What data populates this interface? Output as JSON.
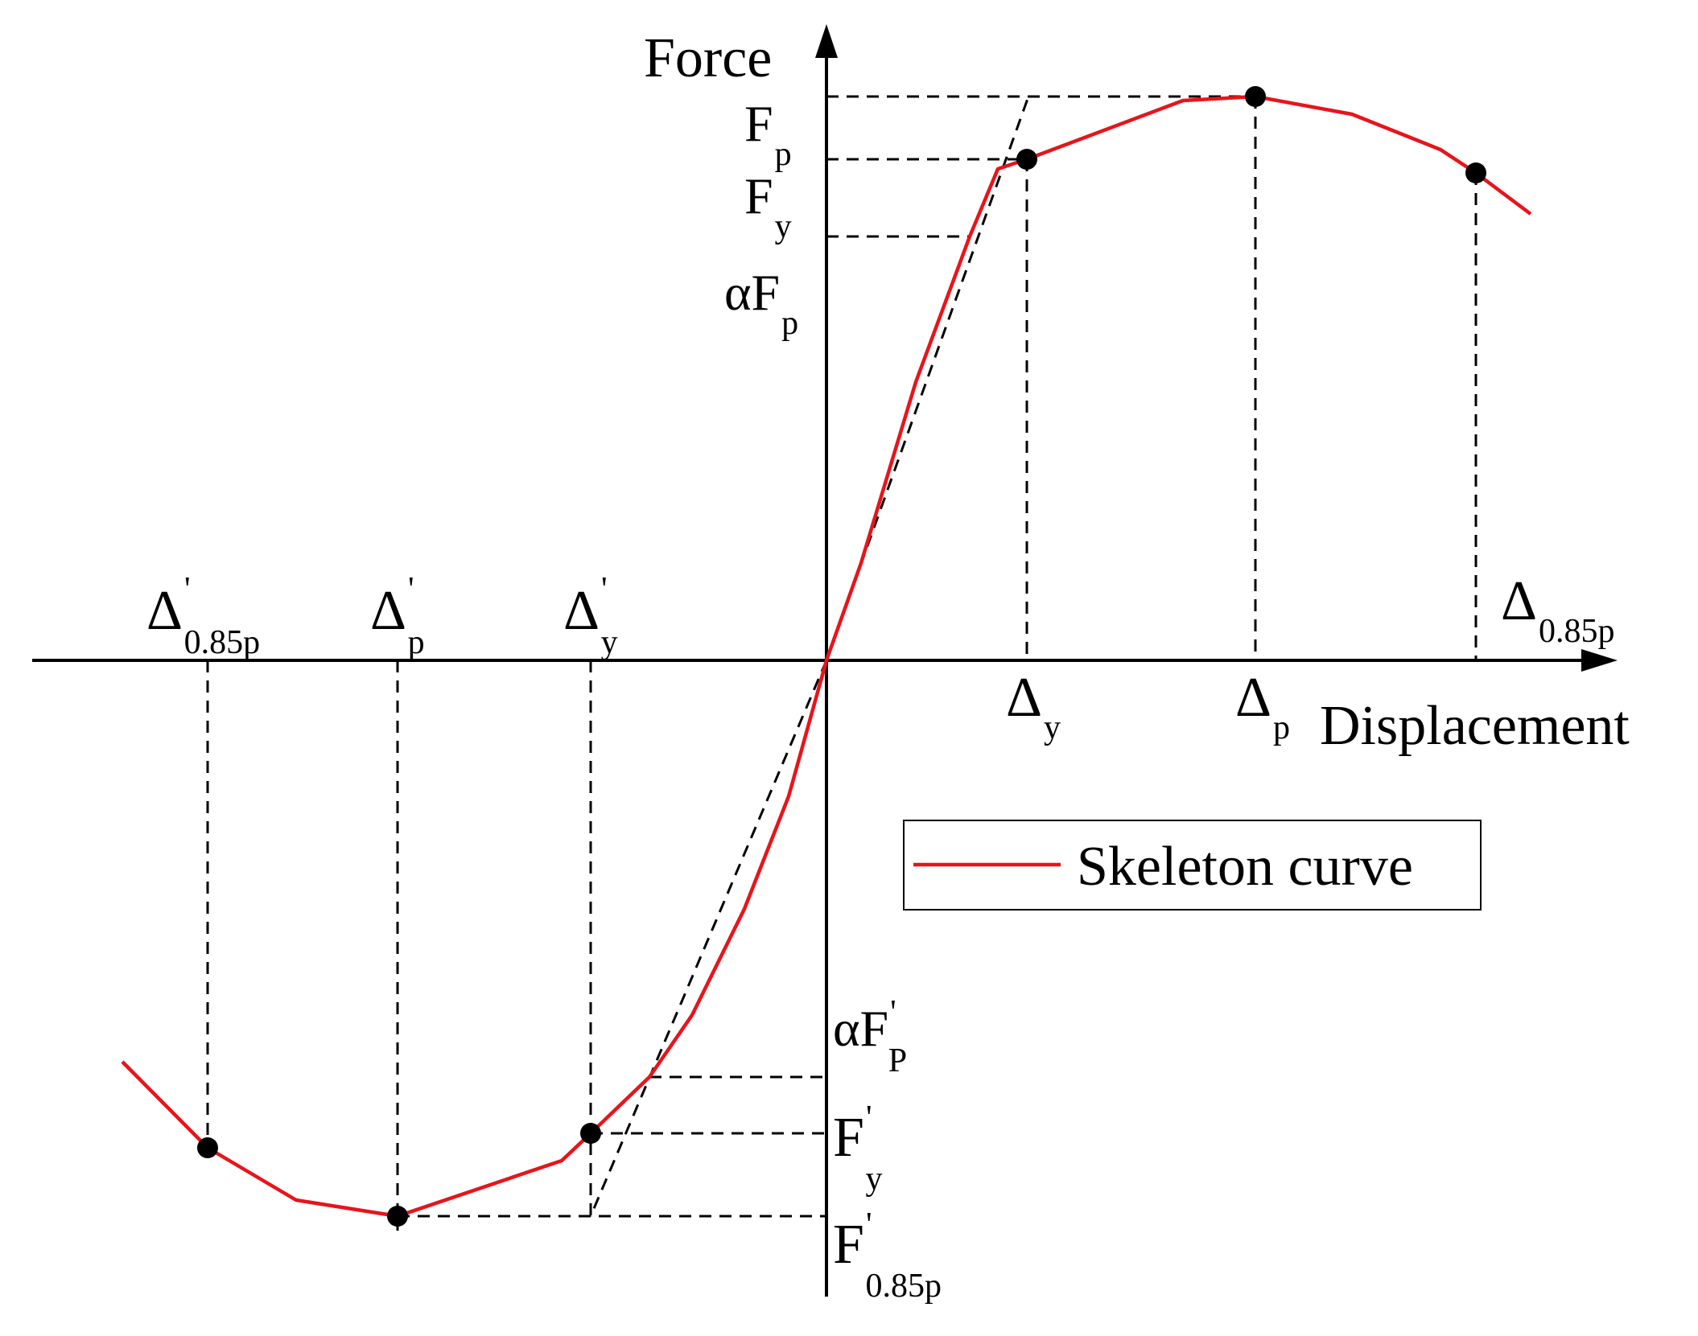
{
  "diagram": {
    "axes": {
      "y_label": "Force",
      "x_label": "Displacement"
    },
    "force_labels": {
      "Fp": {
        "main": "F",
        "sub": "p"
      },
      "Fy": {
        "main": "F",
        "sub": "y"
      },
      "aFp": {
        "main": "αF",
        "sub": "p"
      },
      "aFp_neg": {
        "main": "αF",
        "prime": "'",
        "sub": "P"
      },
      "Fy_neg": {
        "main": "F",
        "prime": "'",
        "sub": "y"
      },
      "F085_neg": {
        "main": "F",
        "prime": "'",
        "sub": "0.85p"
      }
    },
    "displacement_labels": {
      "dy": {
        "main": "Δ",
        "sub": "y"
      },
      "dp": {
        "main": "Δ",
        "sub": "p"
      },
      "d085": {
        "main": "Δ",
        "sub": "0.85p"
      },
      "d085_neg": {
        "main": "Δ",
        "prime": "'",
        "sub": "0.85p"
      },
      "dp_neg": {
        "main": "Δ",
        "prime": "'",
        "sub": "p"
      },
      "dy_neg": {
        "main": "Δ",
        "prime": "'",
        "sub": "y"
      }
    },
    "legend": {
      "label": "Skeleton curve",
      "line_color": "#e8141b"
    },
    "colors": {
      "curve": "#e8141b",
      "axes": "#000000",
      "points": "#000000"
    }
  }
}
